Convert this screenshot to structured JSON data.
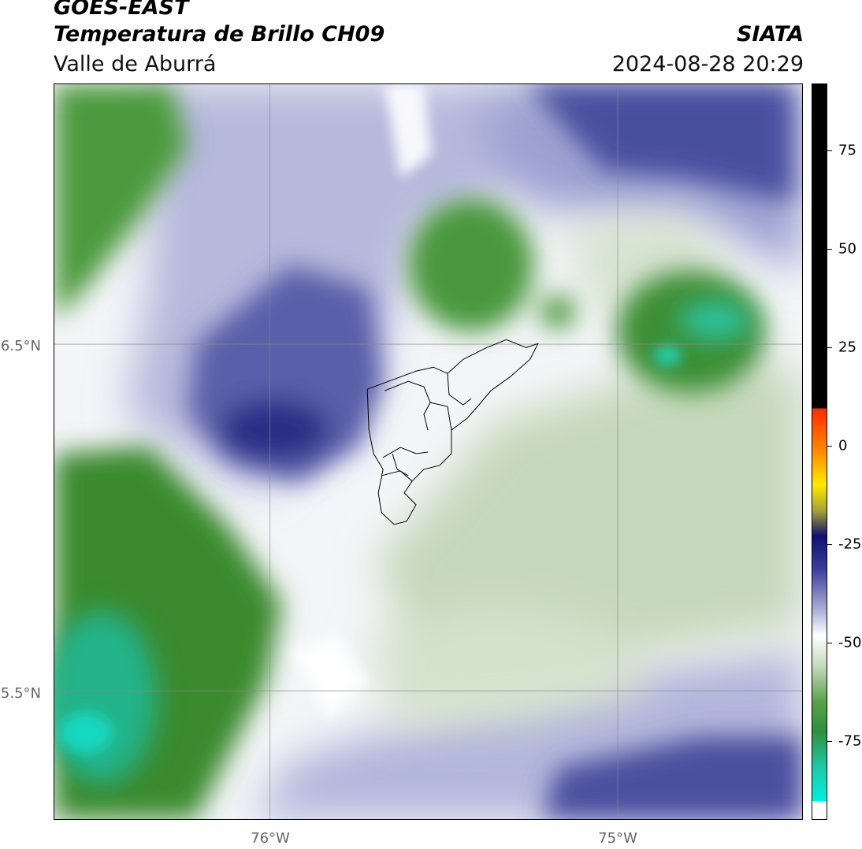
{
  "header": {
    "satellite": "GOES-EAST",
    "product": "Temperatura de Brillo CH09",
    "region": "Valle de Aburrá",
    "brand": "SIATA",
    "timestamp": "2024-08-28 20:29"
  },
  "map": {
    "lat_labels": [
      "6.5°N",
      "5.5°N"
    ],
    "lon_labels": [
      "76°W",
      "75°W"
    ],
    "extent": {
      "lon_min": -76.62,
      "lon_max": -74.47,
      "lat_min": 5.13,
      "lat_max": 7.25
    },
    "graticule": {
      "lats": [
        6.5,
        5.5
      ],
      "lons": [
        -76.0,
        -75.0
      ]
    },
    "colors": {
      "cold_green": "#3a8a2e",
      "coldest_cyan": "#18d7bf",
      "mid_blue": "#2a2a8a",
      "pale": "#ffffff",
      "pale_green": "#c7d9bd"
    }
  },
  "colorbar": {
    "ticks": [
      "75",
      "50",
      "25",
      "0",
      "-25",
      "-50",
      "-75"
    ],
    "tick_values": [
      75,
      50,
      25,
      0,
      -25,
      -50,
      -75
    ],
    "range": [
      -95,
      92
    ],
    "unit": ""
  }
}
